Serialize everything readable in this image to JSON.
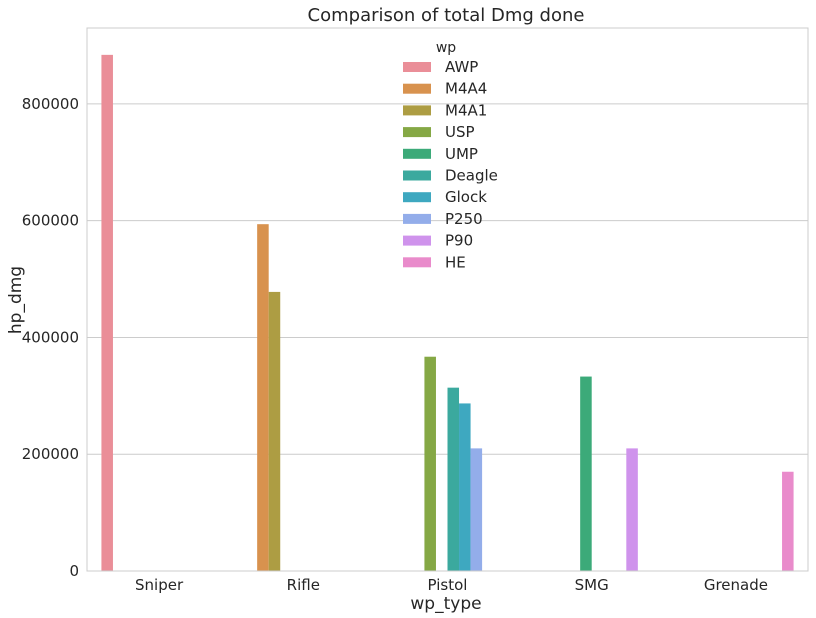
{
  "chart_data": {
    "type": "bar",
    "title": "Comparison of total Dmg done",
    "xlabel": "wp_type",
    "ylabel": "hp_dmg",
    "categories": [
      "Sniper",
      "Rifle",
      "Pistol",
      "SMG",
      "Grenade"
    ],
    "ylim": [
      0,
      930000
    ],
    "yticks": [
      0,
      200000,
      400000,
      600000,
      800000
    ],
    "ytick_labels": [
      "0",
      "200000",
      "400000",
      "600000",
      "800000"
    ],
    "grid": true,
    "legend_title": "wp",
    "legend_position": "top-center",
    "series": [
      {
        "name": "AWP",
        "color": "#ea8e98",
        "values": [
          884000,
          null,
          null,
          null,
          null
        ]
      },
      {
        "name": "M4A4",
        "color": "#d8924e",
        "values": [
          null,
          594000,
          null,
          null,
          null
        ]
      },
      {
        "name": "M4A1",
        "color": "#ad9d43",
        "values": [
          null,
          478000,
          null,
          null,
          null
        ]
      },
      {
        "name": "USP",
        "color": "#85a845",
        "values": [
          null,
          null,
          367000,
          null,
          null
        ]
      },
      {
        "name": "UMP",
        "color": "#3caa79",
        "values": [
          null,
          null,
          null,
          333000,
          null
        ]
      },
      {
        "name": "Deagle",
        "color": "#3ba99e",
        "values": [
          null,
          null,
          314000,
          null,
          null
        ]
      },
      {
        "name": "Glock",
        "color": "#3ea8c0",
        "values": [
          null,
          null,
          287000,
          null,
          null
        ]
      },
      {
        "name": "P250",
        "color": "#93adea",
        "values": [
          null,
          null,
          210000,
          null,
          null
        ]
      },
      {
        "name": "P90",
        "color": "#cf93ec",
        "values": [
          null,
          null,
          null,
          210000,
          null
        ]
      },
      {
        "name": "HE",
        "color": "#e98bcb",
        "values": [
          null,
          null,
          null,
          null,
          170000
        ]
      }
    ]
  }
}
